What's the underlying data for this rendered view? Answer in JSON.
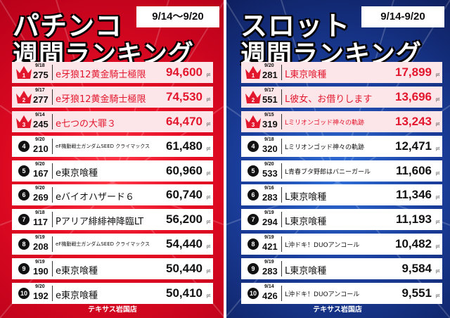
{
  "pachinko": {
    "title_line1": "パチンコ",
    "title_line2": "週間ランキング",
    "date_range": "9/14～9/20",
    "footer": "テキサス岩国店",
    "rows": [
      {
        "rank": "1",
        "date": "9/18",
        "number": "275",
        "name": "e牙狼12黄金騎士極限",
        "value": "94,600",
        "unit": "pt"
      },
      {
        "rank": "2",
        "date": "9/17",
        "number": "277",
        "name": "e牙狼12黄金騎士極限",
        "value": "74,530",
        "unit": "pt"
      },
      {
        "rank": "3",
        "date": "9/14",
        "number": "245",
        "name": "e七つの大罪３",
        "value": "64,470",
        "unit": "pt"
      },
      {
        "rank": "4",
        "date": "9/20",
        "number": "210",
        "name": "eF機動戦士ガンダムSEED クライマックス",
        "value": "61,480",
        "unit": "pt"
      },
      {
        "rank": "5",
        "date": "9/20",
        "number": "167",
        "name": "e東京喰種",
        "value": "60,960",
        "unit": "pt"
      },
      {
        "rank": "6",
        "date": "9/20",
        "number": "269",
        "name": "eバイオハザード６",
        "value": "60,740",
        "unit": "pt"
      },
      {
        "rank": "7",
        "date": "9/18",
        "number": "117",
        "name": "Pアリア緋緋神降臨LT",
        "value": "56,200",
        "unit": "pt"
      },
      {
        "rank": "8",
        "date": "9/19",
        "number": "208",
        "name": "eF機動戦士ガンダムSEED クライマックス",
        "value": "54,440",
        "unit": "pt"
      },
      {
        "rank": "9",
        "date": "9/19",
        "number": "190",
        "name": "e東京喰種",
        "value": "50,440",
        "unit": "pt"
      },
      {
        "rank": "10",
        "date": "9/20",
        "number": "192",
        "name": "e東京喰種",
        "value": "50,410",
        "unit": "pt"
      }
    ]
  },
  "slot": {
    "title_line1": "スロット",
    "title_line2": "週間ランキング",
    "date_range": "9/14-9/20",
    "footer": "テキサス岩国店",
    "rows": [
      {
        "rank": "1",
        "date": "9/20",
        "number": "281",
        "name": "L東京喰種",
        "value": "17,899",
        "unit": "pt"
      },
      {
        "rank": "2",
        "date": "9/17",
        "number": "551",
        "name": "L彼女、お借りします",
        "value": "13,696",
        "unit": "pt"
      },
      {
        "rank": "3",
        "date": "9/15",
        "number": "319",
        "name": "Lミリオンゴッド神々の軌跡",
        "value": "13,243",
        "unit": "pt"
      },
      {
        "rank": "4",
        "date": "9/18",
        "number": "320",
        "name": "Lミリオンゴッド神々の軌跡",
        "value": "12,471",
        "unit": "pt"
      },
      {
        "rank": "5",
        "date": "9/20",
        "number": "533",
        "name": "L青春ブタ野郎はバニーガール",
        "value": "11,606",
        "unit": "pt"
      },
      {
        "rank": "6",
        "date": "9/16",
        "number": "283",
        "name": "L東京喰種",
        "value": "11,346",
        "unit": "pt"
      },
      {
        "rank": "7",
        "date": "9/19",
        "number": "294",
        "name": "L東京喰種",
        "value": "11,193",
        "unit": "pt"
      },
      {
        "rank": "8",
        "date": "9/19",
        "number": "421",
        "name": "L沖ドキ！DUOアンコール",
        "value": "10,482",
        "unit": "pt"
      },
      {
        "rank": "9",
        "date": "9/19",
        "number": "283",
        "name": "L東京喰種",
        "value": "9,584",
        "unit": "pt"
      },
      {
        "rank": "10",
        "date": "9/14",
        "number": "426",
        "name": "L沖ドキ！DUOアンコール",
        "value": "9,551",
        "unit": "pt"
      }
    ]
  },
  "colors": {
    "red": "#e2162d",
    "blue": "#1b3f9e",
    "crown": "#e2162d",
    "top_row_bg": "#fde6e9"
  },
  "icons": {
    "top_rank": "crown-icon",
    "other_rank": "rank-circle"
  }
}
